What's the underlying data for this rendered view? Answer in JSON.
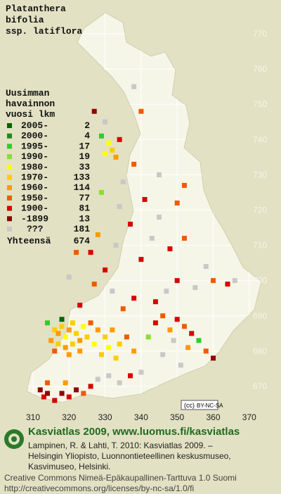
{
  "title_lines": [
    "Platanthera",
    "bifolia",
    "ssp. latiflora"
  ],
  "legend": {
    "heading": [
      "Uusimman",
      "havainnon",
      "vuosi    lkm"
    ],
    "rows": [
      {
        "label": "2005-",
        "count": 2,
        "color": "#006400"
      },
      {
        "label": "2000-",
        "count": 4,
        "color": "#1a8c1a"
      },
      {
        "label": "1995-",
        "count": 17,
        "color": "#2ecc2e"
      },
      {
        "label": "1990-",
        "count": 19,
        "color": "#88e030"
      },
      {
        "label": "1980-",
        "count": 33,
        "color": "#ffff00"
      },
      {
        "label": "1970-",
        "count": 133,
        "color": "#ffcc00"
      },
      {
        "label": "1960-",
        "count": 114,
        "color": "#ff9a00"
      },
      {
        "label": "1950-",
        "count": 77,
        "color": "#f05a00"
      },
      {
        "label": "1900-",
        "count": 81,
        "color": "#d80000"
      },
      {
        "label": "-1899",
        "count": 13,
        "color": "#900000"
      },
      {
        "label": "???",
        "count": 181,
        "color": "#c8c8c8"
      }
    ],
    "total_label": "Yhteensä",
    "total": 674
  },
  "grid": {
    "northings": [
      770,
      760,
      750,
      740,
      730,
      720,
      710,
      700,
      690,
      680,
      670
    ],
    "eastings": [
      310,
      320,
      330,
      340,
      350,
      360,
      370
    ]
  },
  "observations": [
    [
      316,
      686,
      5
    ],
    [
      317,
      685,
      6
    ],
    [
      318,
      687,
      5
    ],
    [
      319,
      684,
      4
    ],
    [
      320,
      686,
      6
    ],
    [
      321,
      688,
      5
    ],
    [
      322,
      685,
      5
    ],
    [
      323,
      683,
      6
    ],
    [
      324,
      687,
      4
    ],
    [
      315,
      683,
      6
    ],
    [
      317,
      682,
      5
    ],
    [
      319,
      681,
      6
    ],
    [
      321,
      682,
      5
    ],
    [
      323,
      680,
      6
    ],
    [
      325,
      684,
      5
    ],
    [
      326,
      688,
      7
    ],
    [
      314,
      688,
      2
    ],
    [
      318,
      689,
      0
    ],
    [
      327,
      682,
      4
    ],
    [
      328,
      686,
      6
    ],
    [
      330,
      684,
      5
    ],
    [
      332,
      686,
      6
    ],
    [
      334,
      682,
      5
    ],
    [
      336,
      684,
      7
    ],
    [
      338,
      680,
      6
    ],
    [
      329,
      679,
      5
    ],
    [
      331,
      681,
      4
    ],
    [
      320,
      679,
      6
    ],
    [
      316,
      680,
      7
    ],
    [
      333,
      678,
      5
    ],
    [
      312,
      669,
      9
    ],
    [
      313,
      667,
      8
    ],
    [
      314,
      668,
      9
    ],
    [
      316,
      666,
      8
    ],
    [
      318,
      668,
      9
    ],
    [
      320,
      667,
      8
    ],
    [
      322,
      669,
      9
    ],
    [
      324,
      668,
      7
    ],
    [
      326,
      670,
      8
    ],
    [
      314,
      671,
      7
    ],
    [
      319,
      671,
      6
    ],
    [
      328,
      672,
      10
    ],
    [
      331,
      673,
      10
    ],
    [
      334,
      671,
      10
    ],
    [
      337,
      673,
      8
    ],
    [
      340,
      674,
      10
    ],
    [
      344,
      688,
      8
    ],
    [
      346,
      690,
      7
    ],
    [
      348,
      686,
      6
    ],
    [
      350,
      689,
      8
    ],
    [
      352,
      687,
      7
    ],
    [
      354,
      685,
      8
    ],
    [
      356,
      683,
      2
    ],
    [
      358,
      680,
      7
    ],
    [
      360,
      678,
      9
    ],
    [
      353,
      681,
      6
    ],
    [
      349,
      683,
      10
    ],
    [
      346,
      679,
      10
    ],
    [
      351,
      676,
      10
    ],
    [
      342,
      684,
      3
    ],
    [
      344,
      694,
      8
    ],
    [
      347,
      697,
      10
    ],
    [
      350,
      700,
      8
    ],
    [
      355,
      698,
      10
    ],
    [
      360,
      700,
      7
    ],
    [
      364,
      699,
      8
    ],
    [
      366,
      700,
      10
    ],
    [
      358,
      704,
      10
    ],
    [
      335,
      692,
      7
    ],
    [
      338,
      695,
      8
    ],
    [
      332,
      697,
      10
    ],
    [
      330,
      703,
      8
    ],
    [
      327,
      699,
      7
    ],
    [
      323,
      693,
      8
    ],
    [
      320,
      701,
      10
    ],
    [
      326,
      708,
      8
    ],
    [
      333,
      710,
      10
    ],
    [
      340,
      706,
      8
    ],
    [
      343,
      712,
      10
    ],
    [
      348,
      709,
      8
    ],
    [
      352,
      712,
      7
    ],
    [
      328,
      713,
      6
    ],
    [
      322,
      708,
      7
    ],
    [
      337,
      716,
      8
    ],
    [
      345,
      718,
      10
    ],
    [
      350,
      722,
      7
    ],
    [
      341,
      723,
      8
    ],
    [
      334,
      721,
      10
    ],
    [
      329,
      725,
      3
    ],
    [
      330,
      736,
      4
    ],
    [
      332,
      737,
      5
    ],
    [
      333,
      735,
      6
    ],
    [
      331,
      739,
      4
    ],
    [
      334,
      740,
      8
    ],
    [
      329,
      741,
      2
    ],
    [
      330,
      745,
      10
    ],
    [
      335,
      728,
      10
    ],
    [
      338,
      733,
      7
    ],
    [
      340,
      748,
      7
    ],
    [
      327,
      748,
      9
    ],
    [
      338,
      755,
      10
    ],
    [
      345,
      730,
      10
    ],
    [
      352,
      727,
      7
    ]
  ],
  "license_badge": "BY-NC-SA",
  "footer": {
    "heading": "Kasviatlas 2009, www.luomus.fi/kasviatlas",
    "citation": [
      "Lampinen, R. & Lahti, T. 2010: Kasviatlas 2009. –",
      "Helsingin Yliopisto, Luonnontieteellinen keskusmuseo,",
      "Kasvimuseo, Helsinki."
    ],
    "license": [
      "Creative Commons Nimeä-Epäkaupallinen-Tarttuva 1.0 Suomi",
      "http://creativecommons.org/licenses/by-nc-sa/1.0/fi"
    ]
  }
}
